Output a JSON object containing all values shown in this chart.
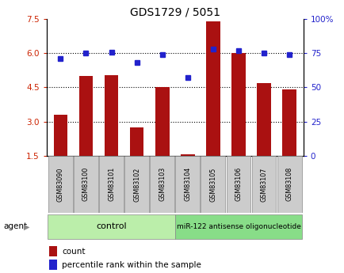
{
  "title": "GDS1729 / 5051",
  "samples": [
    "GSM83090",
    "GSM83100",
    "GSM83101",
    "GSM83102",
    "GSM83103",
    "GSM83104",
    "GSM83105",
    "GSM83106",
    "GSM83107",
    "GSM83108"
  ],
  "bar_values": [
    3.3,
    5.0,
    5.05,
    2.75,
    4.5,
    1.55,
    7.4,
    6.0,
    4.7,
    4.4
  ],
  "dot_values": [
    71,
    75,
    76,
    68,
    74,
    57,
    78,
    77,
    75,
    74
  ],
  "left_ylim": [
    1.5,
    7.5
  ],
  "right_ylim": [
    0,
    100
  ],
  "left_yticks": [
    1.5,
    3.0,
    4.5,
    6.0,
    7.5
  ],
  "right_yticks": [
    0,
    25,
    50,
    75,
    100
  ],
  "right_yticklabels": [
    "0",
    "25",
    "50",
    "75",
    "100%"
  ],
  "hlines": [
    3.0,
    4.5,
    6.0
  ],
  "bar_color": "#AA1111",
  "dot_color": "#2222CC",
  "bar_width": 0.55,
  "n_control": 5,
  "n_treatment": 5,
  "control_label": "control",
  "treatment_label": "miR-122 antisense oligonucleotide",
  "agent_label": "agent",
  "legend_count_label": "count",
  "legend_percentile_label": "percentile rank within the sample",
  "background_color": "#FFFFFF",
  "label_color_left": "#CC2200",
  "label_color_right": "#2222CC",
  "control_color": "#BBEEAA",
  "treatment_color": "#88DD88"
}
